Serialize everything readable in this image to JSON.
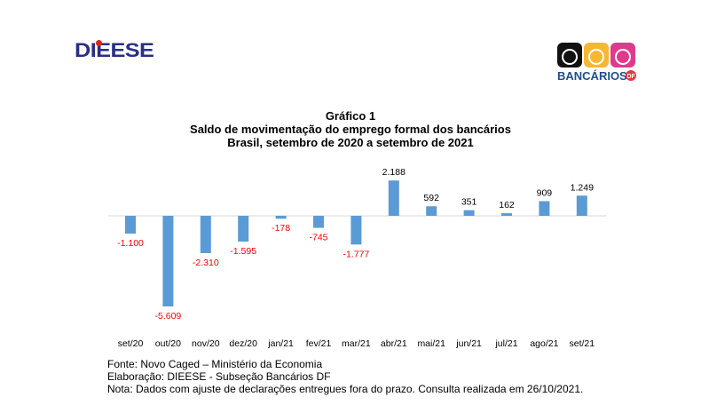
{
  "header": {
    "left_logo": "DIEESE",
    "right_logo": "BANCÁRIOS DF"
  },
  "chart_data": {
    "type": "bar",
    "title": "Gráfico 1",
    "subtitle": "Saldo de movimentação do emprego formal dos bancários",
    "subtitle2": "Brasil, setembro de 2020 a setembro de 2021",
    "categories": [
      "set/20",
      "out/20",
      "nov/20",
      "dez/20",
      "jan/21",
      "fev/21",
      "mar/21",
      "abr/21",
      "mai/21",
      "jun/21",
      "jul/21",
      "ago/21",
      "set/21"
    ],
    "values": [
      -1100,
      -5609,
      -2310,
      -1595,
      -178,
      -745,
      -1777,
      2188,
      592,
      351,
      162,
      909,
      1249
    ],
    "labels": [
      "-1.100",
      "-5.609",
      "-2.310",
      "-1.595",
      "-178",
      "-745",
      "-1.777",
      "2.188",
      "592",
      "351",
      "162",
      "909",
      "1.249"
    ],
    "xlabel": "",
    "ylabel": "",
    "bar_color": "#5b9bd5",
    "negative_label_color": "#ff0000",
    "positive_label_color": "#000000"
  },
  "notes": {
    "source": "Fonte: Novo Caged – Ministério da Economia",
    "elaboration": "Elaboração: DIEESE - Subseção Bancários DF",
    "note": "Nota: Dados com ajuste de declarações entregues fora do prazo. Consulta realizada em 26/10/2021."
  }
}
